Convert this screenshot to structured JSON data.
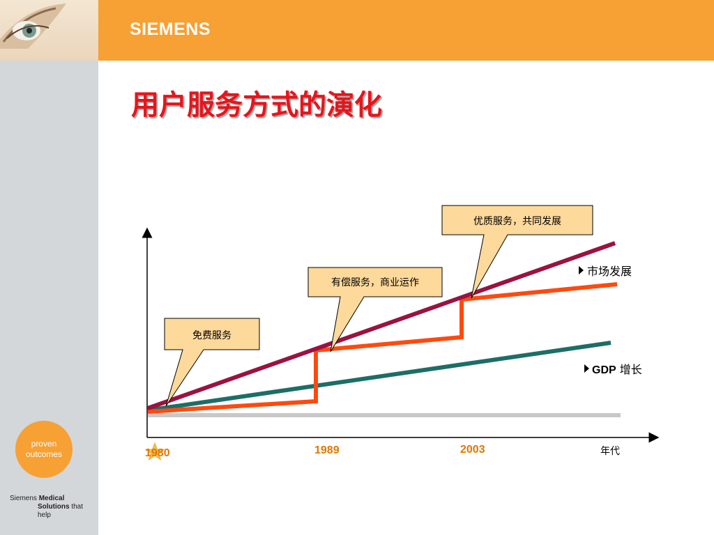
{
  "header": {
    "brand": "SIEMENS",
    "title": "用户服务方式的演化"
  },
  "sidebar": {
    "badge_line1": "proven",
    "badge_line2": "outcomes",
    "footer_line1_a": "Siemens ",
    "footer_line1_b": "Medical",
    "footer_line2_a": "Solutions",
    "footer_line2_b": " that help"
  },
  "colors": {
    "header_orange": "#f7a034",
    "title_red": "#e8141b",
    "market_line": "#9b1242",
    "service_line": "#ff4a0f",
    "gdp_line": "#1c6e66",
    "baseline": "#c8c8c8",
    "callout_fill": "#fdd99b",
    "year_color": "#e07700"
  },
  "diagram": {
    "callouts": [
      {
        "text": "免费服务"
      },
      {
        "text": "有偿服务，商业运作"
      },
      {
        "text": "优质服务，共同发展"
      }
    ],
    "legend": {
      "market": "市场发展",
      "gdp_prefix": "GDP",
      "gdp_suffix": " 增长"
    },
    "x_axis_label": "年代",
    "years": [
      "1980",
      "1989",
      "2003"
    ]
  }
}
